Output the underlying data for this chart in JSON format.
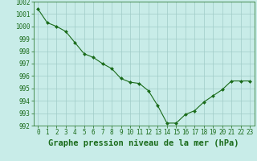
{
  "x": [
    0,
    1,
    2,
    3,
    4,
    5,
    6,
    7,
    8,
    9,
    10,
    11,
    12,
    13,
    14,
    15,
    16,
    17,
    18,
    19,
    20,
    21,
    22,
    23
  ],
  "y": [
    1001.4,
    1000.3,
    1000.0,
    999.6,
    998.7,
    997.8,
    997.5,
    997.0,
    996.6,
    995.8,
    995.5,
    995.4,
    994.8,
    993.6,
    992.2,
    992.2,
    992.9,
    993.2,
    993.9,
    994.4,
    994.9,
    995.6,
    995.6,
    995.6
  ],
  "line_color": "#1a6b1a",
  "marker_color": "#1a6b1a",
  "bg_color": "#c8ece8",
  "grid_color": "#a0ccc8",
  "xlabel": "Graphe pression niveau de la mer (hPa)",
  "ylim": [
    992,
    1002
  ],
  "yticks": [
    992,
    993,
    994,
    995,
    996,
    997,
    998,
    999,
    1000,
    1001,
    1002
  ],
  "xticks": [
    0,
    1,
    2,
    3,
    4,
    5,
    6,
    7,
    8,
    9,
    10,
    11,
    12,
    13,
    14,
    15,
    16,
    17,
    18,
    19,
    20,
    21,
    22,
    23
  ],
  "tick_label_fontsize": 5.5,
  "xlabel_fontsize": 7.5
}
